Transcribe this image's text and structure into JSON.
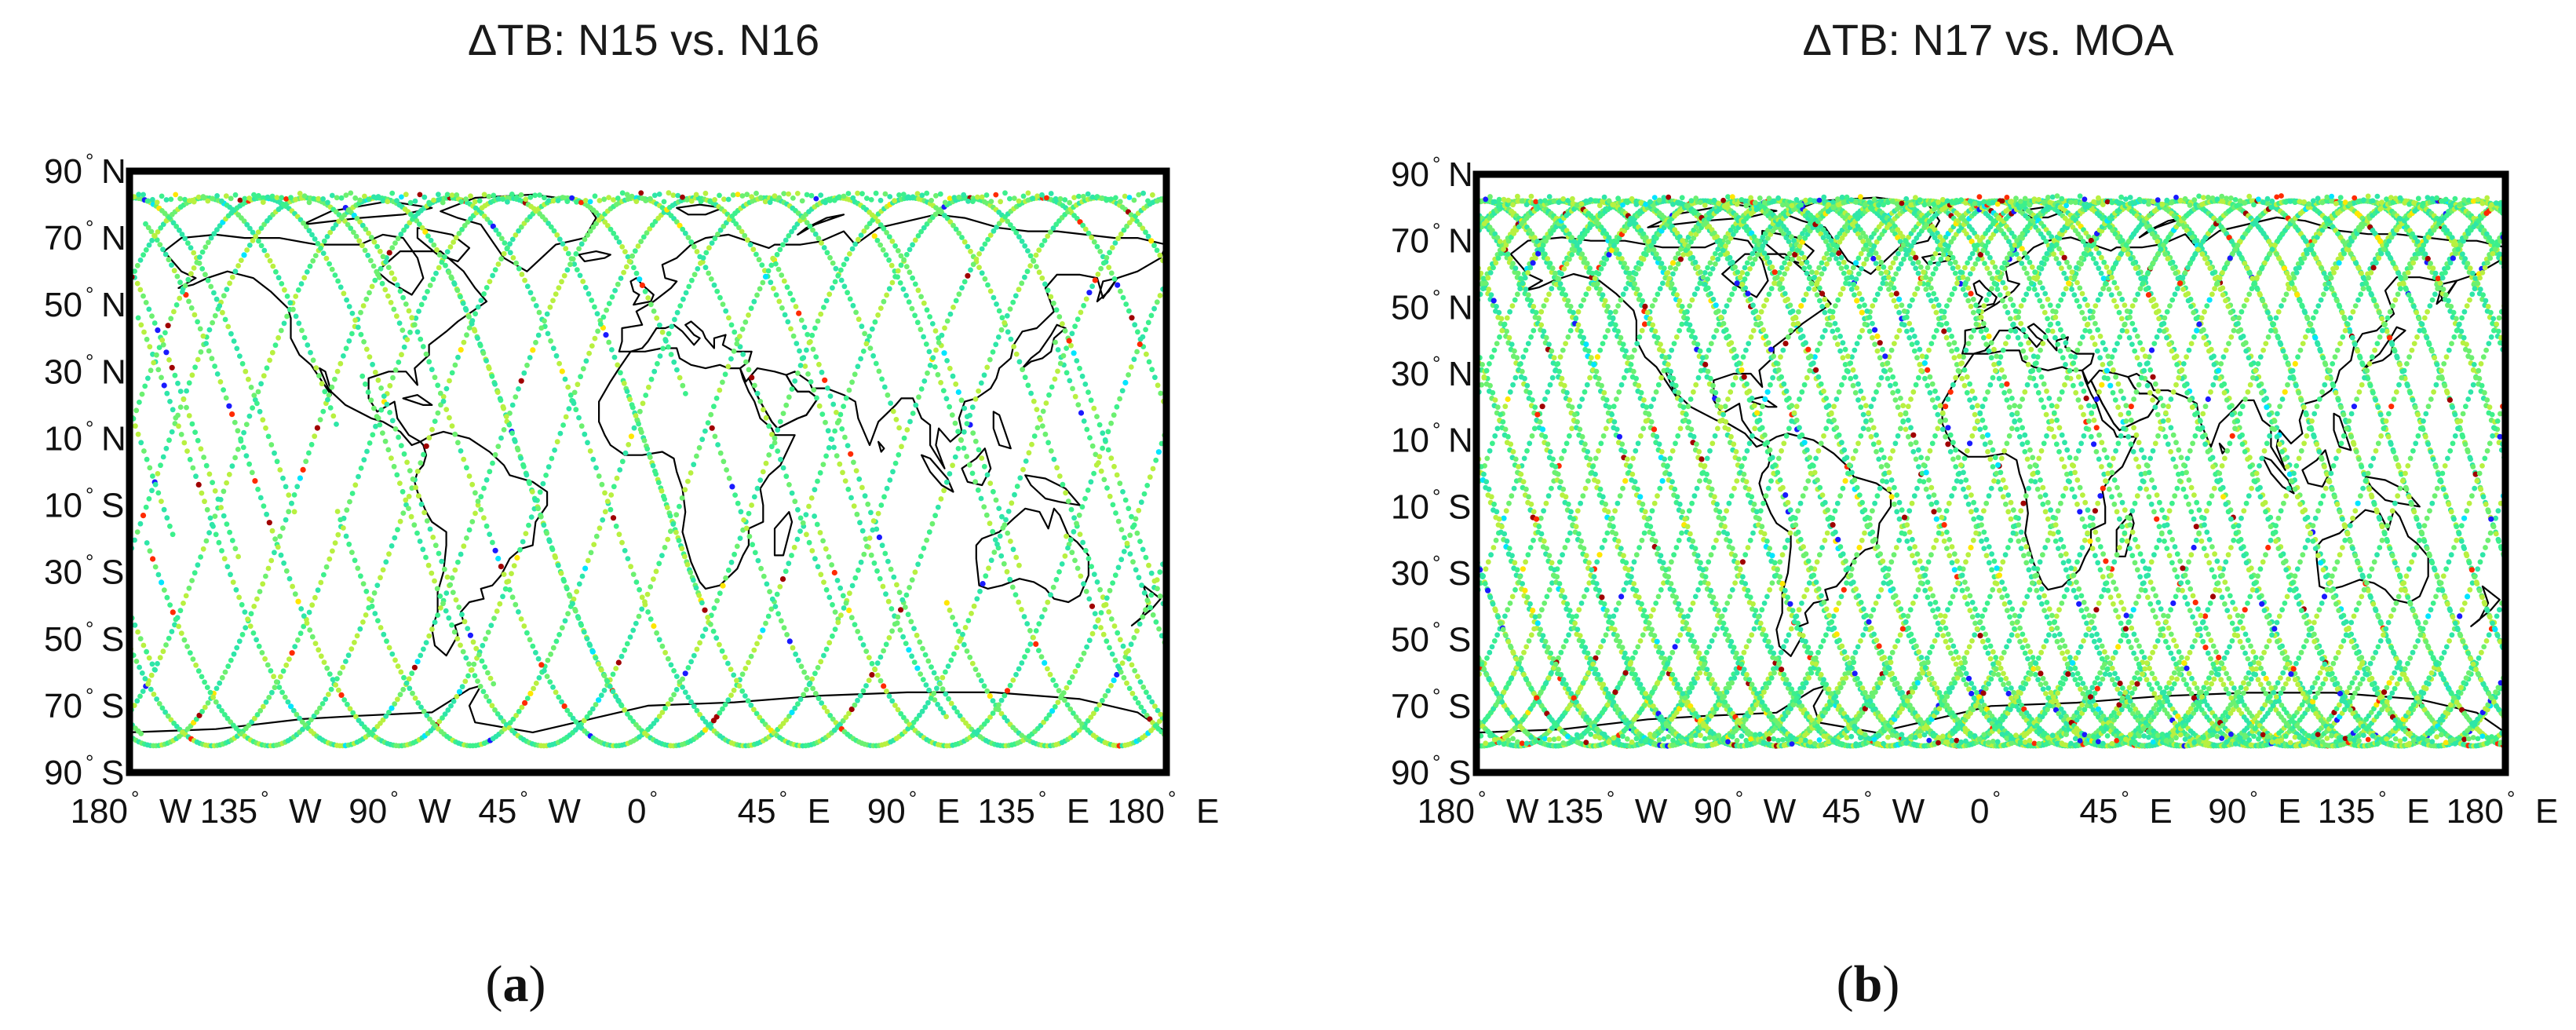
{
  "chart_data": [
    {
      "type": "scatter",
      "panel": "a",
      "title": "ΔTB: N15 vs. N16",
      "caption": "a",
      "xlabel": "",
      "ylabel": "",
      "xlim": [
        -180,
        180
      ],
      "ylim": [
        -90,
        90
      ],
      "x_ticks": [
        -180,
        -135,
        -90,
        -45,
        0,
        45,
        90,
        135,
        180
      ],
      "x_tick_labels": [
        {
          "num": "180",
          "hemi": "W"
        },
        {
          "num": "135",
          "hemi": "W"
        },
        {
          "num": "90",
          "hemi": "W"
        },
        {
          "num": "45",
          "hemi": "W"
        },
        {
          "num": "0",
          "hemi": ""
        },
        {
          "num": "45",
          "hemi": "E"
        },
        {
          "num": "90",
          "hemi": "E"
        },
        {
          "num": "135",
          "hemi": "E"
        },
        {
          "num": "180",
          "hemi": "E"
        }
      ],
      "y_ticks": [
        90,
        70,
        50,
        30,
        10,
        -10,
        -30,
        -50,
        -70,
        -90
      ],
      "y_tick_labels": [
        {
          "num": "90",
          "hemi": "N"
        },
        {
          "num": "70",
          "hemi": "N"
        },
        {
          "num": "50",
          "hemi": "N"
        },
        {
          "num": "30",
          "hemi": "N"
        },
        {
          "num": "10",
          "hemi": "N"
        },
        {
          "num": "10",
          "hemi": "S"
        },
        {
          "num": "30",
          "hemi": "S"
        },
        {
          "num": "50",
          "hemi": "S"
        },
        {
          "num": "70",
          "hemi": "S"
        },
        {
          "num": "90",
          "hemi": "S"
        }
      ],
      "degree_symbol": "°",
      "background": "#ffffff",
      "coastline_color": "#000000",
      "track_colors": [
        "#3cf08c",
        "#6cf070",
        "#2ee6a8",
        "#b8f040"
      ],
      "anomaly_colors": [
        "#ff2a00",
        "#1a1aff",
        "#ffe600",
        "#00e5ff",
        "#a00000"
      ],
      "series": [
        {
          "name": "satellite-tracks",
          "description_count": 16,
          "max_latitude": 82,
          "ascending_nodes_longitude": [
            -170,
            -145,
            -120,
            -100,
            -80,
            -55,
            -35,
            -10,
            15,
            40,
            60,
            85,
            105,
            130,
            155,
            175
          ],
          "coverage": "partial"
        }
      ]
    },
    {
      "type": "scatter",
      "panel": "b",
      "title": "ΔTB: N17 vs. MOA",
      "caption": "b",
      "xlabel": "",
      "ylabel": "",
      "xlim": [
        -180,
        180
      ],
      "ylim": [
        -90,
        90
      ],
      "x_ticks": [
        -180,
        -135,
        -90,
        -45,
        0,
        45,
        90,
        135,
        180
      ],
      "x_tick_labels": [
        {
          "num": "180",
          "hemi": "W"
        },
        {
          "num": "135",
          "hemi": "W"
        },
        {
          "num": "90",
          "hemi": "W"
        },
        {
          "num": "45",
          "hemi": "W"
        },
        {
          "num": "0",
          "hemi": ""
        },
        {
          "num": "45",
          "hemi": "E"
        },
        {
          "num": "90",
          "hemi": "E"
        },
        {
          "num": "135",
          "hemi": "E"
        },
        {
          "num": "180",
          "hemi": "E"
        }
      ],
      "y_ticks": [
        90,
        70,
        50,
        30,
        10,
        -10,
        -30,
        -50,
        -70,
        -90
      ],
      "y_tick_labels": [
        {
          "num": "90",
          "hemi": "N"
        },
        {
          "num": "70",
          "hemi": "N"
        },
        {
          "num": "50",
          "hemi": "N"
        },
        {
          "num": "30",
          "hemi": "N"
        },
        {
          "num": "10",
          "hemi": "N"
        },
        {
          "num": "10",
          "hemi": "S"
        },
        {
          "num": "30",
          "hemi": "S"
        },
        {
          "num": "50",
          "hemi": "S"
        },
        {
          "num": "70",
          "hemi": "S"
        },
        {
          "num": "90",
          "hemi": "S"
        }
      ],
      "degree_symbol": "°",
      "background": "#ffffff",
      "coastline_color": "#000000",
      "track_colors": [
        "#3cf08c",
        "#6cf070",
        "#2ee6a8",
        "#b8f040"
      ],
      "anomaly_colors": [
        "#ff2a00",
        "#1a1aff",
        "#ffe600",
        "#00e5ff",
        "#a00000"
      ],
      "series": [
        {
          "name": "satellite-tracks",
          "description_count": 28,
          "max_latitude": 82,
          "ascending_nodes_longitude": [
            -178,
            -165,
            -152,
            -140,
            -127,
            -114,
            -101,
            -88,
            -76,
            -63,
            -50,
            -37,
            -24,
            -11,
            2,
            15,
            28,
            41,
            54,
            67,
            80,
            93,
            106,
            119,
            132,
            145,
            158,
            171
          ],
          "coverage": "dense"
        }
      ]
    }
  ]
}
